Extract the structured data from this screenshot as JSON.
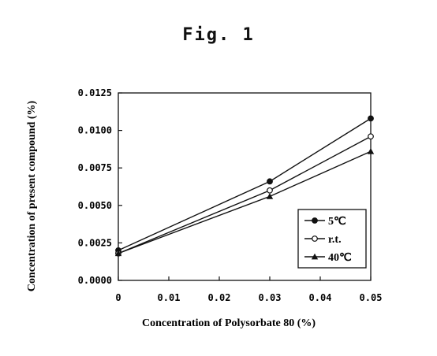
{
  "figure_title": "Fig. 1",
  "chart_data": {
    "type": "line",
    "title": "",
    "xlabel": "Concentration of Polysorbate 80 (%)",
    "ylabel": "Concentration of present compound (%)",
    "xlim": [
      0,
      0.05
    ],
    "ylim": [
      0,
      0.0125
    ],
    "x_ticks": [
      "0",
      "0.01",
      "0.02",
      "0.03",
      "0.04",
      "0.05"
    ],
    "y_ticks": [
      "0.0000",
      "0.0025",
      "0.0050",
      "0.0075",
      "0.0100",
      "0.0125"
    ],
    "x": [
      0,
      0.03,
      0.05
    ],
    "legend_position": "bottom-right",
    "grid": false,
    "series": [
      {
        "name": "5℃",
        "marker": "filled-circle",
        "values": [
          0.002,
          0.0066,
          0.0108
        ]
      },
      {
        "name": "r.t.",
        "marker": "open-circle",
        "values": [
          0.0018,
          0.006,
          0.0096
        ]
      },
      {
        "name": "40℃",
        "marker": "filled-triangle",
        "values": [
          0.0018,
          0.0056,
          0.0086
        ]
      }
    ]
  }
}
